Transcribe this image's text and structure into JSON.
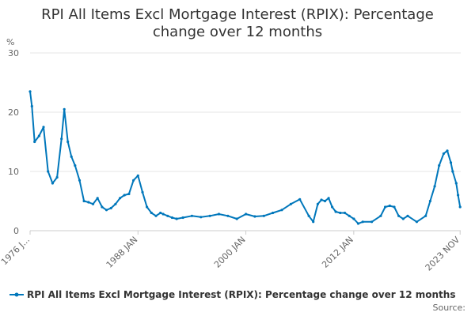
{
  "chart_data": {
    "type": "line",
    "title_lines": [
      "RPI All Items Excl Mortgage Interest (RPIX): Percentage",
      "change over 12 months"
    ],
    "ylabel": "%",
    "ylim": [
      0,
      30
    ],
    "yticks": [
      "0",
      "10",
      "20",
      "30"
    ],
    "xlim": [
      1976.0,
      2023.9
    ],
    "xticks": [
      {
        "label": "1976 J...",
        "x": 1976.0
      },
      {
        "label": "1988 JAN",
        "x": 1988.0
      },
      {
        "label": "2000 JAN",
        "x": 2000.0
      },
      {
        "label": "2012 JAN",
        "x": 2012.0
      },
      {
        "label": "2023 NOV",
        "x": 2023.83
      }
    ],
    "grid": true,
    "legend_position": "bottom",
    "series": [
      {
        "name": "RPI All Items Excl Mortgage Interest (RPIX): Percentage change over 12 months",
        "color": "#0077bb",
        "x": [
          1976.0,
          1976.2,
          1976.5,
          1977.0,
          1977.5,
          1978.0,
          1978.5,
          1979.0,
          1979.5,
          1979.8,
          1980.2,
          1980.6,
          1981.0,
          1981.5,
          1982.0,
          1982.5,
          1983.0,
          1983.5,
          1984.0,
          1984.5,
          1985.0,
          1985.5,
          1986.0,
          1986.5,
          1987.0,
          1987.5,
          1988.0,
          1988.5,
          1989.0,
          1989.5,
          1990.0,
          1990.5,
          1990.8,
          1991.3,
          1991.8,
          1992.3,
          1993.0,
          1994.0,
          1995.0,
          1996.0,
          1997.0,
          1998.0,
          1999.0,
          2000.0,
          2001.0,
          2002.0,
          2003.0,
          2004.0,
          2005.0,
          2006.0,
          2007.0,
          2007.5,
          2008.0,
          2008.4,
          2008.8,
          2009.2,
          2009.6,
          2010.0,
          2010.5,
          2011.0,
          2011.5,
          2012.0,
          2012.5,
          2013.0,
          2014.0,
          2015.0,
          2015.5,
          2016.0,
          2016.5,
          2017.0,
          2017.5,
          2018.0,
          2019.0,
          2020.0,
          2020.5,
          2021.0,
          2021.5,
          2022.0,
          2022.4,
          2022.8,
          2023.0,
          2023.4,
          2023.6,
          2023.83
        ],
        "values": [
          23.5,
          21.0,
          15.0,
          16.0,
          17.5,
          10.0,
          8.0,
          9.0,
          15.5,
          20.5,
          15.0,
          12.5,
          11.0,
          8.5,
          5.0,
          4.8,
          4.5,
          5.5,
          4.0,
          3.5,
          3.8,
          4.5,
          5.5,
          6.0,
          6.2,
          8.5,
          9.3,
          6.5,
          4.0,
          3.0,
          2.5,
          3.0,
          2.8,
          2.5,
          2.2,
          2.0,
          2.2,
          2.5,
          2.3,
          2.5,
          2.8,
          2.5,
          2.0,
          2.8,
          2.4,
          2.5,
          3.0,
          3.5,
          4.5,
          5.3,
          2.5,
          1.5,
          4.5,
          5.2,
          5.0,
          5.5,
          4.0,
          3.2,
          3.0,
          3.0,
          2.5,
          2.0,
          1.2,
          1.5,
          1.5,
          2.5,
          4.0,
          4.2,
          4.0,
          2.5,
          2.0,
          2.5,
          1.5,
          2.5,
          5.0,
          7.5,
          11.0,
          13.0,
          13.5,
          11.5,
          10.0,
          8.0,
          6.0,
          4.0
        ]
      }
    ],
    "source_label": "Source:"
  }
}
